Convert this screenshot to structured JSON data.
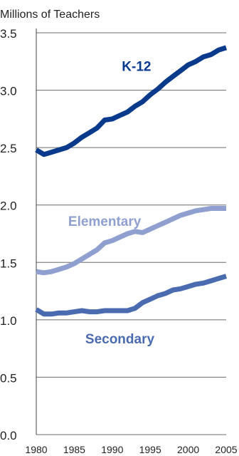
{
  "chart_data": {
    "type": "line",
    "title": "",
    "ylabel": "Millions of Teachers",
    "xlabel": "",
    "ylim": [
      0,
      3.5
    ],
    "xlim": [
      1980,
      2005
    ],
    "yticks": [
      "0.0",
      "0.5",
      "1.0",
      "1.5",
      "2.0",
      "2.5",
      "3.0",
      "3.5"
    ],
    "xticks": [
      "1980",
      "1985",
      "1990",
      "1995",
      "2000",
      "2005"
    ],
    "grid": "horizontal",
    "legend": "inline-labels",
    "series": [
      {
        "name": "K-12",
        "color": "#0a3a8c",
        "x": [
          1980,
          1981,
          1982,
          1983,
          1984,
          1985,
          1986,
          1987,
          1988,
          1989,
          1990,
          1991,
          1992,
          1993,
          1994,
          1995,
          1996,
          1997,
          1998,
          1999,
          2000,
          2001,
          2002,
          2003,
          2004,
          2005
        ],
        "y": [
          2.48,
          2.44,
          2.46,
          2.48,
          2.5,
          2.54,
          2.59,
          2.63,
          2.67,
          2.74,
          2.75,
          2.78,
          2.81,
          2.86,
          2.9,
          2.96,
          3.01,
          3.07,
          3.12,
          3.17,
          3.22,
          3.25,
          3.29,
          3.31,
          3.35,
          3.37
        ]
      },
      {
        "name": "Elementary",
        "color": "#8e9fd0",
        "x": [
          1980,
          1981,
          1982,
          1983,
          1984,
          1985,
          1986,
          1987,
          1988,
          1989,
          1990,
          1991,
          1992,
          1993,
          1994,
          1995,
          1996,
          1997,
          1998,
          1999,
          2000,
          2001,
          2002,
          2003,
          2004,
          2005
        ],
        "y": [
          1.42,
          1.41,
          1.42,
          1.44,
          1.46,
          1.49,
          1.53,
          1.57,
          1.61,
          1.67,
          1.69,
          1.72,
          1.75,
          1.77,
          1.76,
          1.79,
          1.82,
          1.85,
          1.88,
          1.91,
          1.93,
          1.95,
          1.96,
          1.97,
          1.97,
          1.97
        ]
      },
      {
        "name": "Secondary",
        "color": "#4a6bb0",
        "x": [
          1980,
          1981,
          1982,
          1983,
          1984,
          1985,
          1986,
          1987,
          1988,
          1989,
          1990,
          1991,
          1992,
          1993,
          1994,
          1995,
          1996,
          1997,
          1998,
          1999,
          2000,
          2001,
          2002,
          2003,
          2004,
          2005
        ],
        "y": [
          1.09,
          1.05,
          1.05,
          1.06,
          1.06,
          1.07,
          1.08,
          1.07,
          1.07,
          1.08,
          1.08,
          1.08,
          1.08,
          1.1,
          1.15,
          1.18,
          1.21,
          1.23,
          1.26,
          1.27,
          1.29,
          1.31,
          1.32,
          1.34,
          1.36,
          1.38
        ]
      }
    ]
  }
}
